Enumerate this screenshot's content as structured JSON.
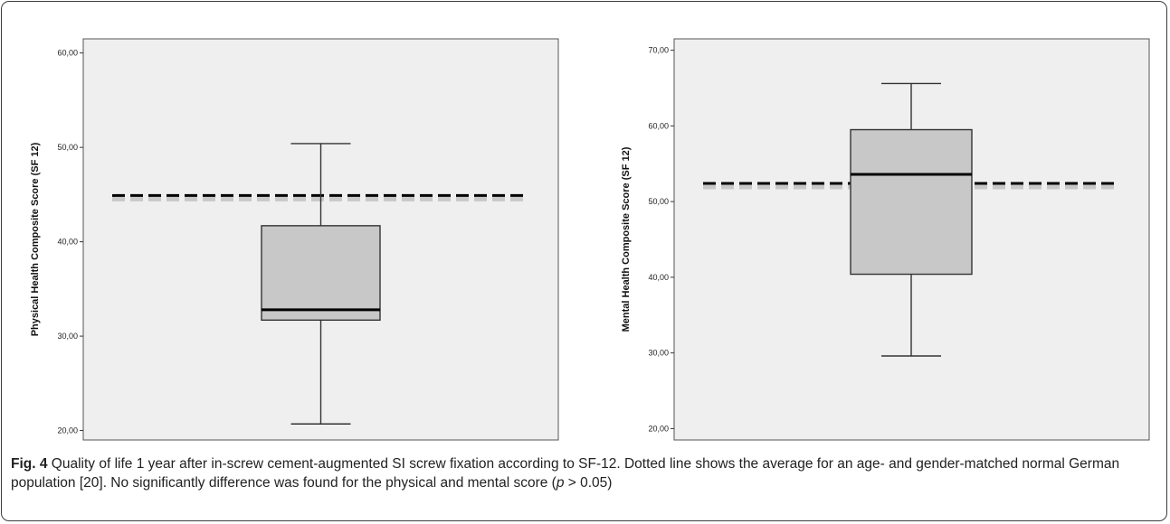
{
  "chart_data": [
    {
      "type": "box",
      "ylabel": "Physical Health Composite Score (SF 12)",
      "yticks": [
        "20,00",
        "30,00",
        "40,00",
        "50,00",
        "60,00"
      ],
      "ylim": [
        19,
        61.5
      ],
      "box": {
        "whisker_low": 20.7,
        "q1": 31.7,
        "median": 32.8,
        "q3": 41.7,
        "whisker_high": 50.4
      },
      "reference_line": 44.9,
      "colors": {
        "box_fill": "#c8c8c8",
        "plot_bg": "#efefef",
        "reference": "#000000"
      }
    },
    {
      "type": "box",
      "ylabel": "Mental Health Composite Score (SF 12)",
      "yticks": [
        "20,00",
        "30,00",
        "40,00",
        "50,00",
        "60,00",
        "70,00"
      ],
      "ylim": [
        18.5,
        71.5
      ],
      "box": {
        "whisker_low": 29.6,
        "q1": 40.4,
        "median": 53.6,
        "q3": 59.5,
        "whisker_high": 65.6
      },
      "reference_line": 52.4,
      "colors": {
        "box_fill": "#c8c8c8",
        "plot_bg": "#efefef",
        "reference": "#000000"
      }
    }
  ],
  "caption": {
    "fig_label": "Fig. 4",
    "text_part1": " Quality of life 1 year after in-screw cement-augmented SI screw fixation according to SF-12. Dotted line shows the average for an age- and gender-matched normal German population [20]. No significantly difference was found for the physical and mental score (",
    "p_symbol": "p",
    "text_part2": " > 0.05)"
  }
}
